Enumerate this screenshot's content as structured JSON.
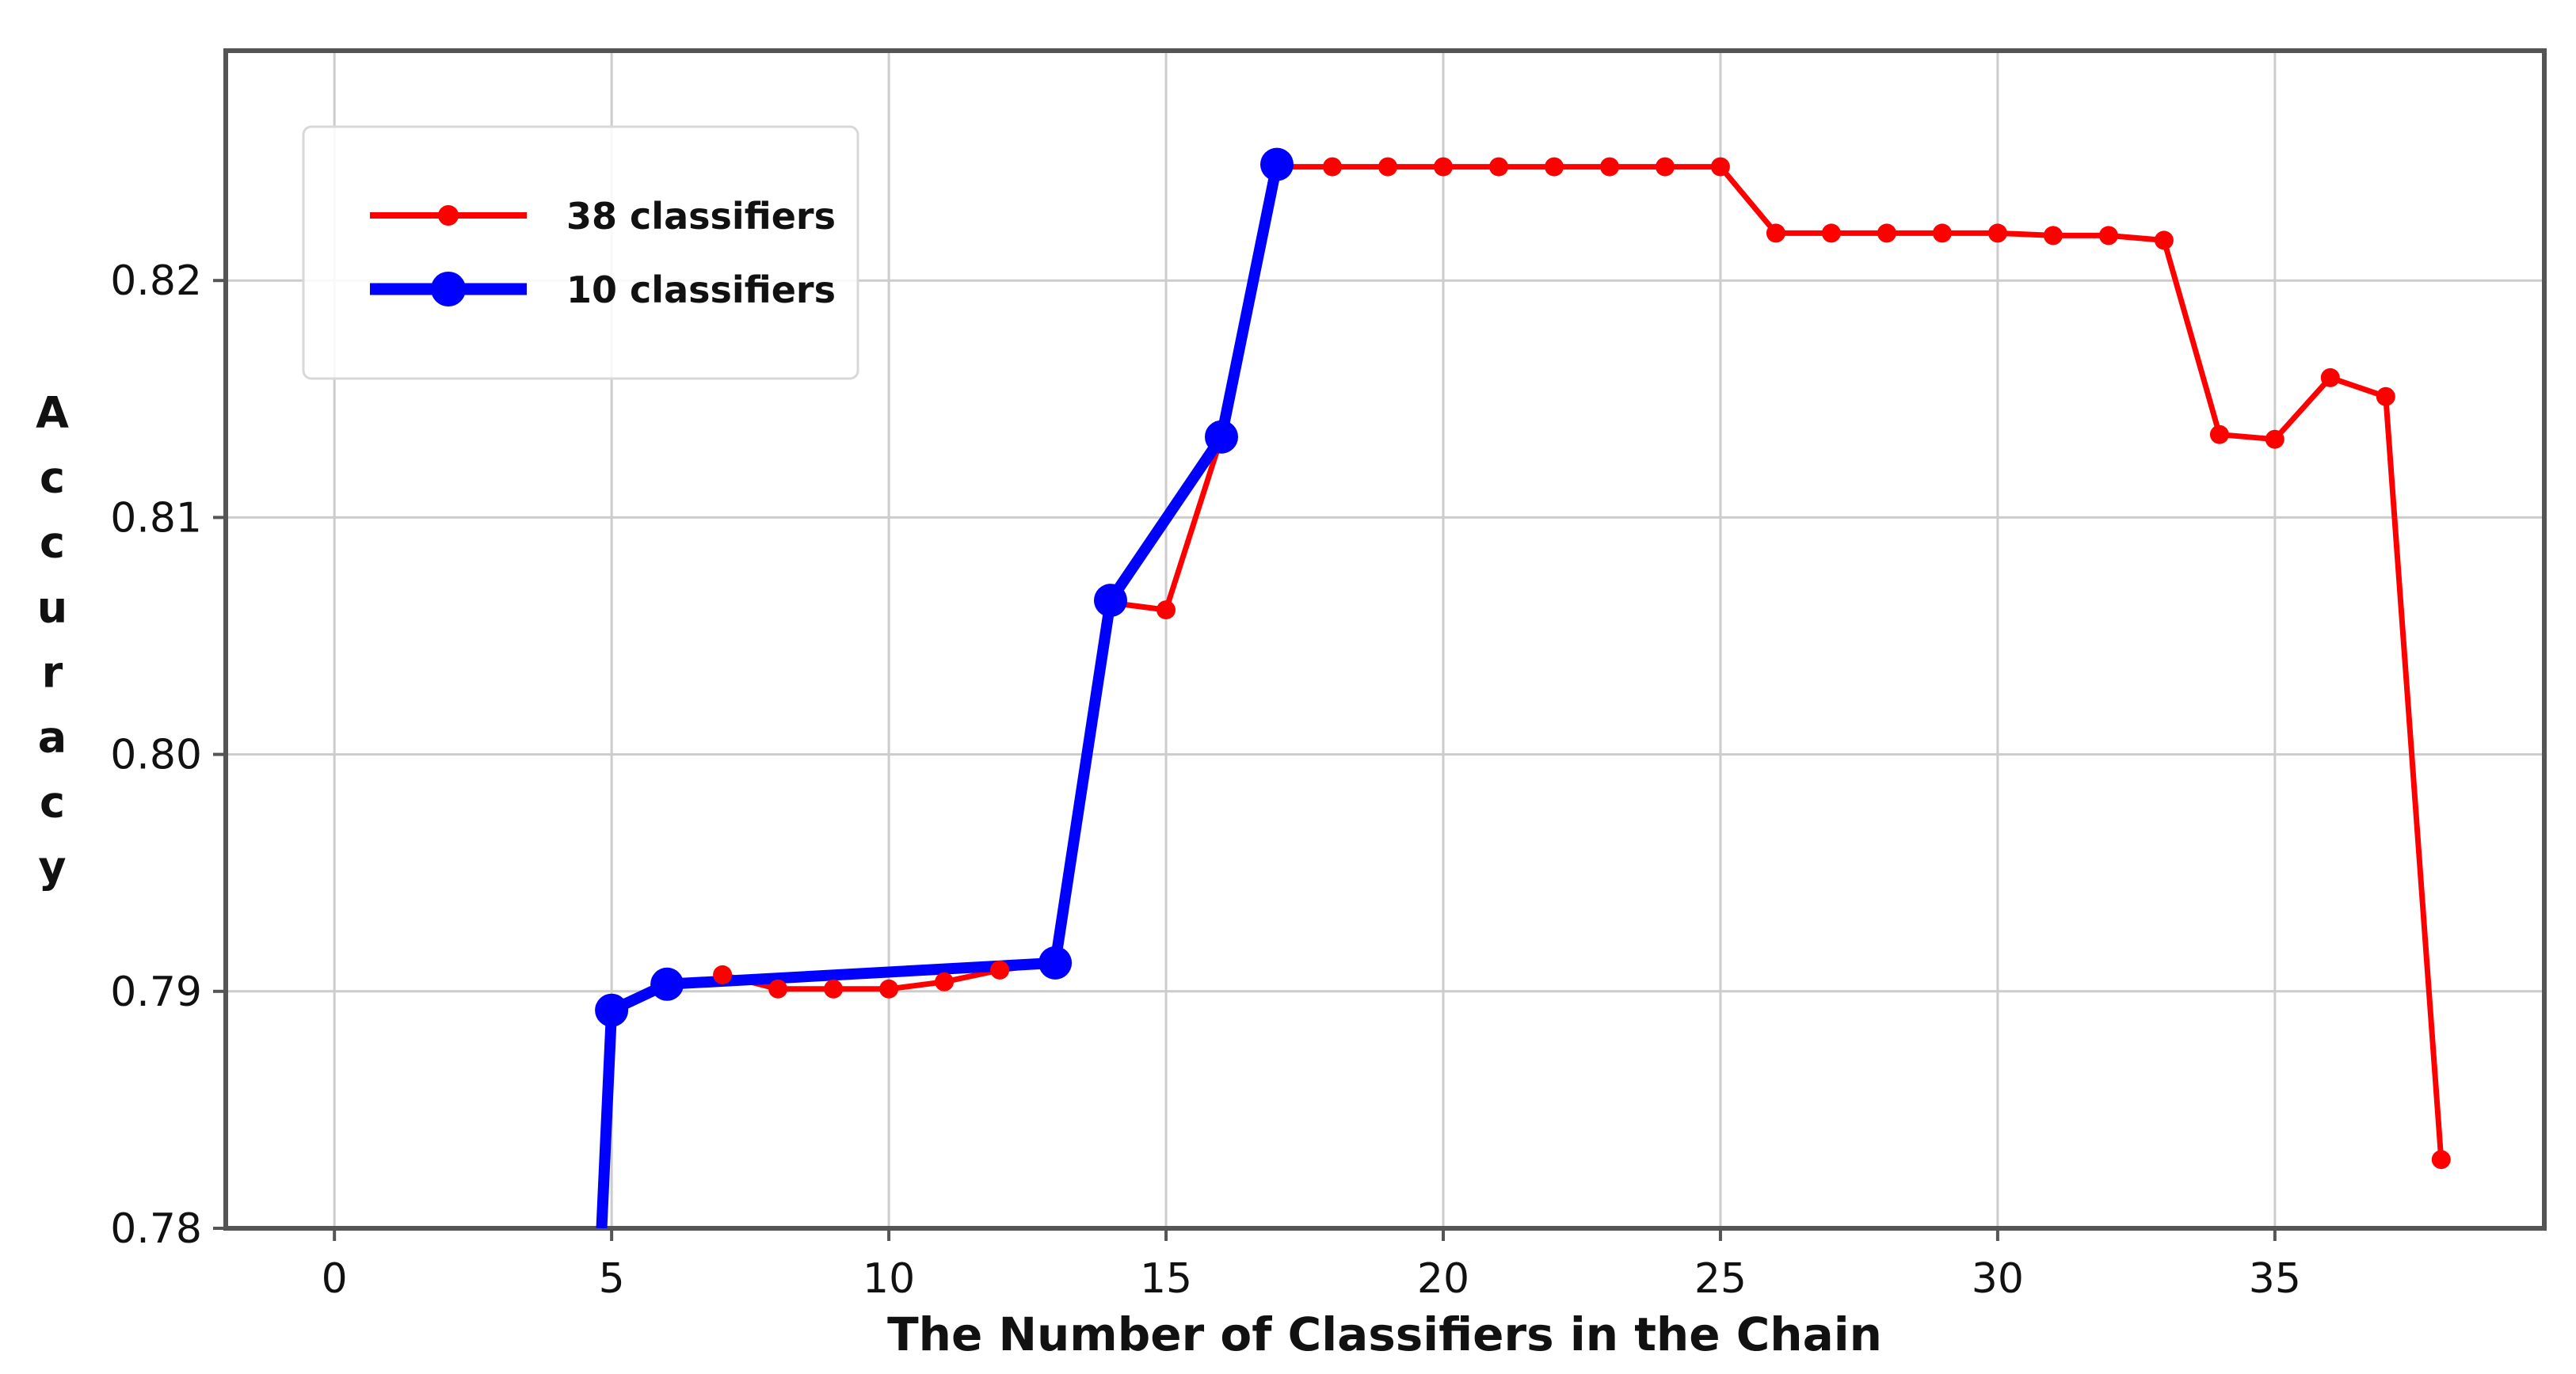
{
  "figure": {
    "background": "#ffffff",
    "plot_border_color": "#555555",
    "grid_color": "#cccccc",
    "text_color": "#111111"
  },
  "legend": {
    "position": "upper left",
    "entries": [
      {
        "label": "38 classifiers",
        "color": "#ff0000",
        "marker": "circle-marker"
      },
      {
        "label": "10 classifiers",
        "color": "#0000ff",
        "marker": "circle-marker"
      }
    ]
  },
  "chart_data": {
    "type": "line",
    "title": "",
    "xlabel": "The Number of Classifiers in the Chain",
    "ylabel": "Accuracy",
    "ylabel_stacked": true,
    "xlim": [
      -1.96,
      39.86
    ],
    "ylim": [
      0.78,
      0.8297
    ],
    "xticks": [
      0,
      5,
      10,
      15,
      20,
      25,
      30,
      35
    ],
    "yticks": [
      0.78,
      0.79,
      0.8,
      0.81,
      0.82
    ],
    "grid": true,
    "legend_position": "upper left",
    "series": [
      {
        "name": "38 classifiers",
        "color": "#ff0000",
        "line_width": 7,
        "marker_radius": 12,
        "x": [
          7,
          8,
          9,
          10,
          11,
          12,
          13,
          14,
          15,
          16,
          17,
          18,
          19,
          20,
          21,
          22,
          23,
          24,
          25,
          26,
          27,
          28,
          29,
          30,
          31,
          32,
          33,
          34,
          35,
          36,
          37,
          38
        ],
        "y": [
          0.7907,
          0.7901,
          0.7901,
          0.7901,
          0.7904,
          0.7909,
          0.7912,
          0.8064,
          0.8061,
          0.8134,
          0.8248,
          0.8248,
          0.8248,
          0.8248,
          0.8248,
          0.8248,
          0.8248,
          0.8248,
          0.8248,
          0.822,
          0.822,
          0.822,
          0.822,
          0.822,
          0.8219,
          0.8219,
          0.8217,
          0.8135,
          0.8133,
          0.8159,
          0.8151,
          0.7829
        ]
      },
      {
        "name": "10 classifiers",
        "color": "#0000ff",
        "line_width": 14,
        "marker_radius": 21,
        "clip_entry": [
          4.82,
          0.78
        ],
        "x": [
          5,
          6,
          13,
          14,
          16,
          17
        ],
        "y": [
          0.7892,
          0.7903,
          0.7912,
          0.8065,
          0.8134,
          0.8249
        ]
      }
    ]
  }
}
